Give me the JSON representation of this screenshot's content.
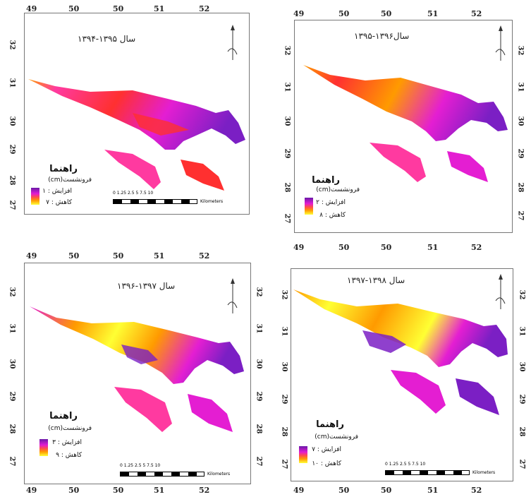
{
  "panels": [
    {
      "title": "سال ۱۳۹۵-۱۳۹۴",
      "legend_title": "راهنما",
      "legend_sub": "فرونشست(cm)",
      "increase": "افزایش : ۱",
      "decrease": "کاهش : ۷",
      "scale_numbers": "0 1.25 2.5     5        7.5      10",
      "scale_unit": "Kilometers",
      "x_ticks": [
        "49",
        "50",
        "50",
        "51",
        "52"
      ],
      "y_ticks": [
        "32",
        "31",
        "30",
        "29",
        "28",
        "27"
      ]
    },
    {
      "title": "سال۱۳۹۶-۱۳۹۵",
      "legend_title": "راهنما",
      "legend_sub": "فرونشست(cm)",
      "increase": "افزایش : ۲",
      "decrease": "کاهش : ۸",
      "x_ticks": [
        "49",
        "50",
        "50",
        "51",
        "52"
      ],
      "bottom_ticks": [
        "49",
        "50",
        "50",
        "51",
        "52"
      ],
      "y_ticks": [
        "32",
        "31",
        "30",
        "29",
        "28",
        "27"
      ]
    },
    {
      "title": "سال ۱۳۹۷-۱۳۹۶",
      "legend_title": "راهنما",
      "legend_sub": "فرونشست(cm)",
      "increase": "افزایش : ۳",
      "decrease": "کاهش : ۹",
      "scale_numbers": "0 1.25 2.5     5        7.5      10",
      "scale_unit": "Kilometers",
      "x_ticks": [
        "49",
        "50",
        "50",
        "51",
        "52"
      ],
      "bottom_ticks": [
        "49",
        "50",
        "50",
        "51",
        "52"
      ],
      "y_ticks": [
        "32",
        "31",
        "30",
        "29",
        "28",
        "27"
      ]
    },
    {
      "title": "سال ۱۳۹۸-۱۳۹۷",
      "legend_title": "راهنما",
      "legend_sub": "فرونشست(cm)",
      "increase": "افزایش : ۷",
      "decrease": "کاهش : ۱۰",
      "scale_numbers": "0 1.25 2.5     5        7.5      10",
      "scale_unit": "Kilometers",
      "bottom_ticks": [
        "49",
        "50",
        "50",
        "51",
        "52"
      ],
      "y_ticks": [
        "32",
        "31",
        "30",
        "29",
        "28",
        "27"
      ]
    }
  ],
  "colors": {
    "purple": "#7b1fc4",
    "magenta": "#e41ed2",
    "pink": "#ff3aa0",
    "red": "#ff3030",
    "orange": "#ff9a00",
    "yellow": "#ffff33"
  }
}
